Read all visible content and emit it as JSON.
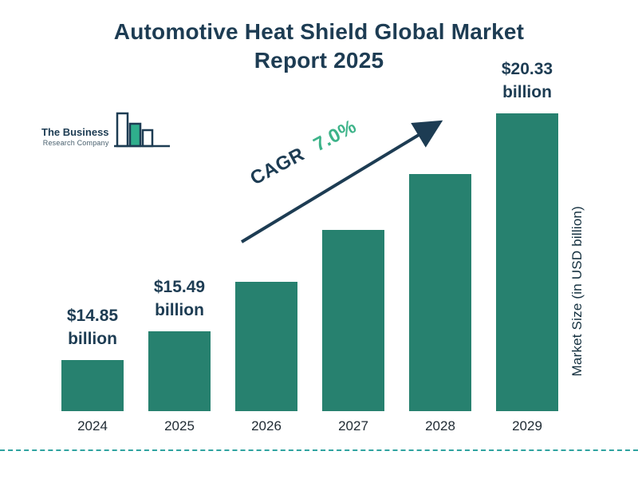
{
  "title": {
    "line1": "Automotive Heat Shield Global Market",
    "line2": "Report 2025"
  },
  "logo": {
    "line1": "The Business",
    "line2": "Research Company"
  },
  "annotation": {
    "cagr_label": "CAGR",
    "cagr_value": "7.0%"
  },
  "colors": {
    "bar": "#27816f",
    "title": "#1d3c53",
    "cagr_green": "#3db389",
    "arrow": "#1d3c53",
    "dashed_line": "#2fa3a0",
    "logo_teal": "#2fae8c"
  },
  "chart_data": {
    "type": "bar",
    "title": "Automotive Heat Shield Global Market Report 2025",
    "categories": [
      "2024",
      "2025",
      "2026",
      "2027",
      "2028",
      "2029"
    ],
    "values": [
      14.85,
      15.49,
      16.58,
      17.74,
      18.98,
      20.33
    ],
    "labels": [
      "$14.85 billion",
      "$15.49 billion",
      null,
      null,
      null,
      "$20.33 billion"
    ],
    "ylabel": "Market Size (in USD billion)",
    "annotation": "CAGR 7.0%",
    "legend": "none",
    "grid": "off",
    "ylim": [
      14,
      21
    ]
  }
}
